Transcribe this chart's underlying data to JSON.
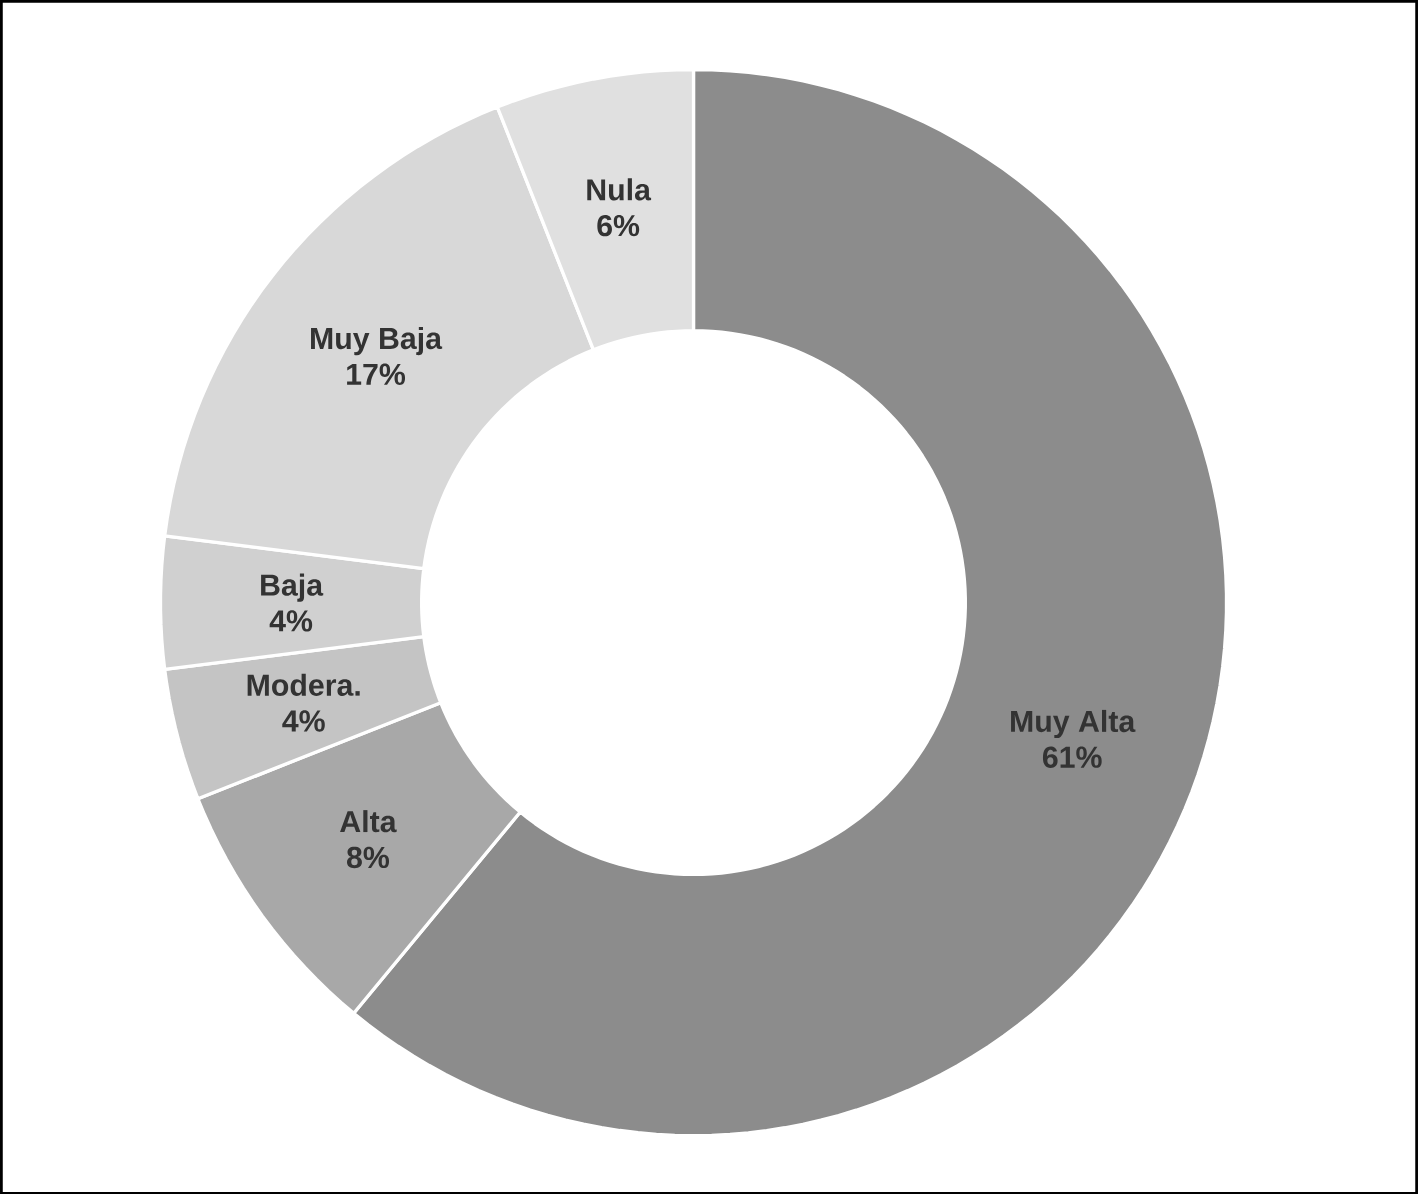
{
  "chart_data": {
    "type": "donut",
    "categories": [
      "Muy Alta",
      "Alta",
      "Modera.",
      "Baja",
      "Muy Baja",
      "Nula"
    ],
    "values": [
      61,
      8,
      4,
      4,
      17,
      6
    ],
    "value_labels": [
      "61%",
      "8%",
      "4%",
      "4%",
      "17%",
      "6%"
    ],
    "colors": [
      "#8c8c8c",
      "#a8a8a8",
      "#c4c4c4",
      "#d0d0d0",
      "#d8d8d8",
      "#e0e0e0"
    ]
  }
}
